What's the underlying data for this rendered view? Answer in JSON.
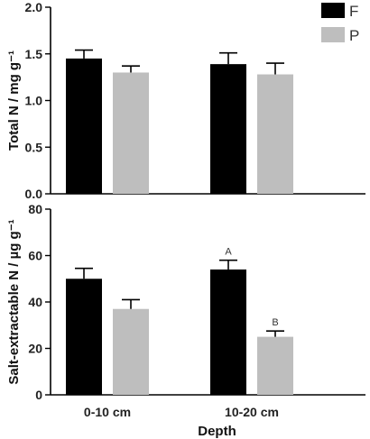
{
  "chart_data": [
    {
      "type": "bar",
      "categories": [
        "0-10 cm",
        "10-20 cm"
      ],
      "series": [
        {
          "name": "F",
          "values": [
            1.45,
            1.39
          ],
          "errors": [
            0.09,
            0.12
          ],
          "color": "#000000"
        },
        {
          "name": "P",
          "values": [
            1.3,
            1.28
          ],
          "errors": [
            0.07,
            0.12
          ],
          "color": "#bebebe"
        }
      ],
      "ylabel": "Total N / mg g⁻¹",
      "ylim": [
        0,
        2.0
      ],
      "yticks": [
        "0.0",
        "0.5",
        "1.0",
        "1.5",
        "2.0"
      ],
      "annotations": [],
      "legend_position": "top-right",
      "grid": false
    },
    {
      "type": "bar",
      "categories": [
        "0-10 cm",
        "10-20 cm"
      ],
      "series": [
        {
          "name": "F",
          "values": [
            50,
            54
          ],
          "errors": [
            4.5,
            4
          ],
          "color": "#000000"
        },
        {
          "name": "P",
          "values": [
            37,
            25
          ],
          "errors": [
            4,
            2.5
          ],
          "color": "#bebebe"
        }
      ],
      "ylabel": "Salt-extractable N / µg g⁻¹",
      "xlabel": "Depth",
      "ylim": [
        0,
        80
      ],
      "yticks": [
        "0",
        "20",
        "40",
        "60",
        "80"
      ],
      "annotations": [
        {
          "category": "10-20 cm",
          "series": "F",
          "text": "A"
        },
        {
          "category": "10-20 cm",
          "series": "P",
          "text": "B"
        }
      ],
      "grid": false
    }
  ]
}
